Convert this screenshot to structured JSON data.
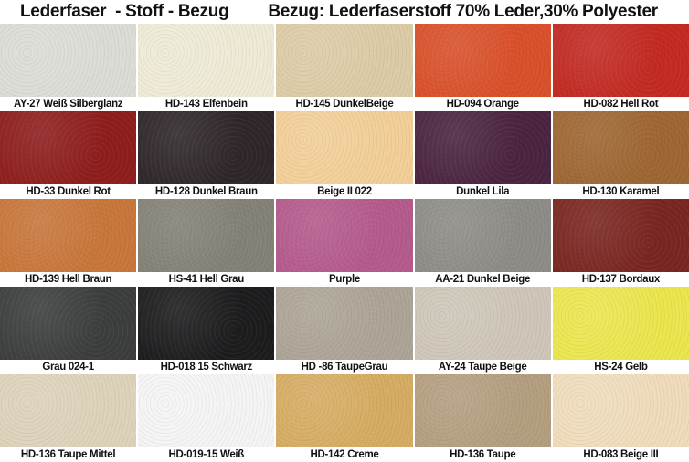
{
  "title_left": "Lederfaser  - Stoff - Bezug",
  "title_right": "Bezug: Lederfaserstoff 70% Leder,30% Polyester",
  "swatches": [
    {
      "label": "AY-27 Weiß Silberglanz",
      "color": "#dcdcd6"
    },
    {
      "label": "HD-143 Elfenbein",
      "color": "#eeead6"
    },
    {
      "label": "HD-145 DunkelBeige",
      "color": "#dccba6"
    },
    {
      "label": "HD-094 Orange",
      "color": "#d9502a"
    },
    {
      "label": "HD-082 Hell Rot",
      "color": "#c22a22"
    },
    {
      "label": "HD-33 Dunkel Rot",
      "color": "#8e1d1d"
    },
    {
      "label": "HD-128 Dunkel Braun",
      "color": "#2e2628"
    },
    {
      "label": "Beige II 022",
      "color": "#f2cf98"
    },
    {
      "label": "Dunkel Lila",
      "color": "#4a2440"
    },
    {
      "label": "HD-130 Karamel",
      "color": "#9e6632"
    },
    {
      "label": "HD-139 Hell Braun",
      "color": "#c8763a"
    },
    {
      "label": "HS-41 Hell Grau",
      "color": "#848276"
    },
    {
      "label": "Purple",
      "color": "#b45a8c"
    },
    {
      "label": "AA-21 Dunkel Beige",
      "color": "#8e8c86"
    },
    {
      "label": "HD-137 Bordaux",
      "color": "#7a2620"
    },
    {
      "label": "Grau 024-1",
      "color": "#3c3e3e"
    },
    {
      "label": "HD-018 15 Schwarz",
      "color": "#1c1c1e"
    },
    {
      "label": "HD -86 TaupeGrau",
      "color": "#aca496"
    },
    {
      "label": "AY-24 Taupe Beige",
      "color": "#cec6b8"
    },
    {
      "label": "HS-24 Gelb",
      "color": "#ebe64e"
    },
    {
      "label": "HD-136 Taupe Mittel",
      "color": "#ddd2ba"
    },
    {
      "label": "HD-019-15 Weiß",
      "color": "#f4f4f4"
    },
    {
      "label": "HD-142 Creme",
      "color": "#d6ac62"
    },
    {
      "label": "HD-136 Taupe",
      "color": "#b49e80"
    },
    {
      "label": "HD-083 Beige III",
      "color": "#f0dcbc"
    }
  ]
}
